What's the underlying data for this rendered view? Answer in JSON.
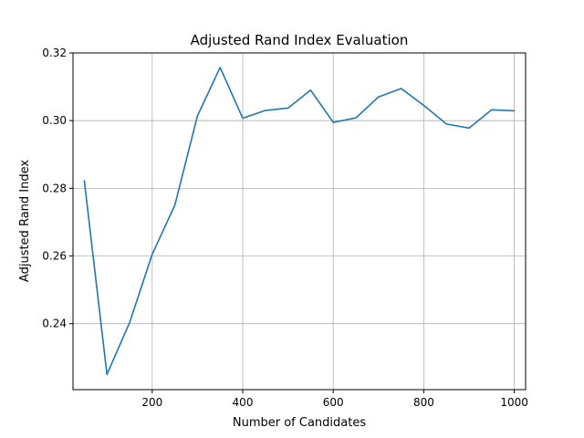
{
  "chart_data": {
    "type": "line",
    "title": "Adjusted Rand Index Evaluation",
    "xlabel": "Number of Candidates",
    "ylabel": "Adjusted Rand Index",
    "xlim": [
      25,
      1025
    ],
    "ylim": [
      0.2205,
      0.32
    ],
    "xticks": [
      200,
      400,
      600,
      800,
      1000
    ],
    "yticks": [
      0.24,
      0.26,
      0.28,
      0.3,
      0.32
    ],
    "ytick_labels": [
      "0.24",
      "0.26",
      "0.28",
      "0.30",
      "0.32"
    ],
    "grid": true,
    "series_color": "#1f77b4",
    "series": [
      {
        "x": [
          50,
          100,
          150,
          200,
          250,
          300,
          350,
          400,
          450,
          500,
          550,
          600,
          650,
          700,
          750,
          800,
          850,
          900,
          950,
          1000
        ],
        "values": [
          0.2822,
          0.225,
          0.2403,
          0.2605,
          0.275,
          0.3014,
          0.3157,
          0.3007,
          0.303,
          0.3037,
          0.309,
          0.2995,
          0.3008,
          0.307,
          0.3095,
          0.3045,
          0.299,
          0.2978,
          0.3032,
          0.3029
        ]
      }
    ]
  }
}
